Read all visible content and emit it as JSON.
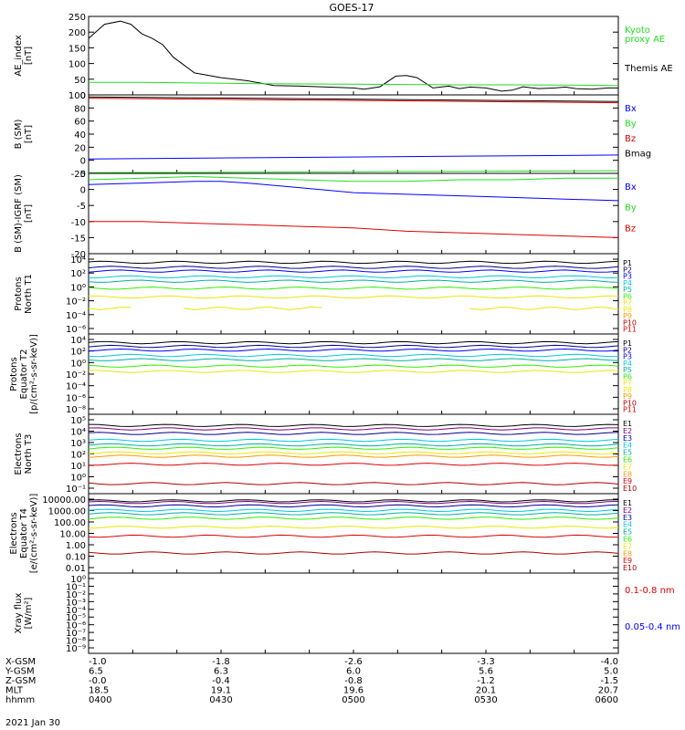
{
  "title": "GOES-17",
  "date": "2021 Jan 30",
  "colors": {
    "black": "#000000",
    "green": "#22dd22",
    "blue": "#0000ff",
    "red": "#dd0000",
    "navy": "#00008b",
    "purple": "#7a0080",
    "cyan": "#00c8e0",
    "teal": "#00b0a0",
    "lime": "#33ee00",
    "yellow": "#e8e800",
    "orange": "#ff9900",
    "darkred": "#aa0000",
    "orangeRed": "#ff4400"
  },
  "chart_data": [
    {
      "id": "ae",
      "type": "line",
      "ylabel": [
        "AE_index",
        "[nT]"
      ],
      "scale": "linear",
      "ylim": [
        0,
        250
      ],
      "ticks": [
        "0",
        "50",
        "100",
        "150",
        "200",
        "250"
      ],
      "legend": [
        {
          "label": "Kyoto",
          "color": "green"
        },
        {
          "label": "proxy AE",
          "color": "green"
        },
        {
          "label": "Themis AE",
          "color": "black"
        }
      ],
      "series": [
        {
          "color": "black",
          "x": [
            0,
            3,
            6,
            8,
            10,
            12,
            14,
            16,
            20,
            25,
            30,
            35,
            40,
            45,
            50,
            52,
            55,
            58,
            60,
            62,
            65,
            68,
            70,
            72,
            75,
            78,
            80,
            82,
            85,
            88,
            90,
            92,
            95,
            98,
            100
          ],
          "y": [
            180,
            225,
            235,
            225,
            195,
            180,
            160,
            120,
            70,
            55,
            45,
            30,
            28,
            25,
            22,
            18,
            26,
            60,
            62,
            55,
            22,
            28,
            20,
            25,
            22,
            12,
            15,
            26,
            20,
            22,
            25,
            20,
            18,
            22,
            22
          ]
        },
        {
          "color": "green",
          "x": [
            0,
            10,
            20,
            30,
            40,
            50,
            60,
            70,
            80,
            90,
            100
          ],
          "y": [
            40,
            40,
            38,
            36,
            35,
            34,
            33,
            32,
            32,
            31,
            30
          ]
        }
      ]
    },
    {
      "id": "b",
      "type": "line",
      "ylabel": [
        "B (SM)",
        "[nT]"
      ],
      "scale": "linear",
      "ylim": [
        -20,
        100
      ],
      "ticks": [
        "-20",
        "0",
        "20",
        "40",
        "60",
        "80",
        "100"
      ],
      "legend": [
        {
          "label": "Bx",
          "color": "blue"
        },
        {
          "label": "By",
          "color": "green"
        },
        {
          "label": "Bz",
          "color": "red"
        },
        {
          "label": "Bmag",
          "color": "black"
        }
      ],
      "series": [
        {
          "color": "black",
          "x": [
            0,
            100
          ],
          "y": [
            97,
            90
          ]
        },
        {
          "color": "red",
          "x": [
            0,
            100
          ],
          "y": [
            95,
            88
          ]
        },
        {
          "color": "blue",
          "x": [
            0,
            100
          ],
          "y": [
            2,
            8
          ]
        },
        {
          "color": "green",
          "x": [
            0,
            100
          ],
          "y": [
            -19,
            -16
          ]
        }
      ]
    },
    {
      "id": "db",
      "type": "line",
      "ylabel": [
        "B (SM)-IGRF (SM)",
        "[nT]"
      ],
      "scale": "linear",
      "ylim": [
        -20,
        5
      ],
      "ticks": [
        "-20",
        "-15",
        "-10",
        "-5",
        "0",
        "5"
      ],
      "legend": [
        {
          "label": "Bx",
          "color": "blue"
        },
        {
          "label": "By",
          "color": "green"
        },
        {
          "label": "Bz",
          "color": "red"
        }
      ],
      "series": [
        {
          "color": "green",
          "x": [
            0,
            10,
            20,
            30,
            40,
            50,
            60,
            70,
            80,
            90,
            100
          ],
          "y": [
            3,
            3.5,
            4,
            3.5,
            3,
            2.5,
            2.5,
            3,
            3,
            3.5,
            3.5
          ]
        },
        {
          "color": "blue",
          "x": [
            0,
            10,
            20,
            25,
            30,
            40,
            50,
            60,
            70,
            80,
            90,
            100
          ],
          "y": [
            1.5,
            2,
            2.5,
            2.5,
            2,
            0.5,
            -1,
            -1.5,
            -2,
            -2.5,
            -3,
            -3.5
          ]
        },
        {
          "color": "red",
          "x": [
            0,
            10,
            20,
            30,
            40,
            50,
            60,
            70,
            80,
            90,
            100
          ],
          "y": [
            -10,
            -10,
            -10.5,
            -11,
            -11.5,
            -12,
            -13,
            -13.5,
            -14,
            -14.5,
            -15
          ]
        }
      ]
    },
    {
      "id": "p1",
      "type": "line",
      "ylabel": [
        "Protons",
        "North T1"
      ],
      "scale": "log",
      "ylim": [
        -7,
        4
      ],
      "ticks": [
        "10⁴",
        "10²",
        "10⁰",
        "10⁻²",
        "10⁻⁴",
        "10⁻⁶"
      ],
      "legend": [
        "P1",
        "P2",
        "P3",
        "P4",
        "P5",
        "P6",
        "P7",
        "P8",
        "P9",
        "P10",
        "P11"
      ],
      "legend_colors": [
        "black",
        "navy",
        "blue",
        "cyan",
        "teal",
        "lime",
        "yellow",
        "yellow",
        "orange",
        "darkred",
        "red"
      ],
      "series": [
        {
          "color": "black",
          "level": 3.5
        },
        {
          "color": "navy",
          "level": 2.7
        },
        {
          "color": "blue",
          "level": 2.1
        },
        {
          "color": "cyan",
          "level": 1.2
        },
        {
          "color": "teal",
          "level": 0.5
        },
        {
          "color": "lime",
          "level": -0.6
        },
        {
          "color": "yellow",
          "level": -2.0
        },
        {
          "color": "yellow",
          "level": -3.8,
          "broken": true
        }
      ]
    },
    {
      "id": "p2",
      "type": "line",
      "ylabel": [
        "Protons",
        "Equator T2",
        "[p/(cm²-s-sr-keV)]"
      ],
      "scale": "log",
      "ylim": [
        -9,
        4
      ],
      "ticks": [
        "10⁴",
        "10²",
        "10⁰",
        "10⁻²",
        "10⁻⁴",
        "10⁻⁶",
        "10⁻⁸"
      ],
      "legend": [
        "P1",
        "P2",
        "P3",
        "P4",
        "P5",
        "P6",
        "P7",
        "P8",
        "P9",
        "P10",
        "P11"
      ],
      "legend_colors": [
        "black",
        "navy",
        "blue",
        "cyan",
        "teal",
        "lime",
        "yellow",
        "yellow",
        "orange",
        "darkred",
        "red"
      ],
      "series": [
        {
          "color": "black",
          "level": 3.4
        },
        {
          "color": "navy",
          "level": 2.7
        },
        {
          "color": "blue",
          "level": 2.0
        },
        {
          "color": "cyan",
          "level": 1.0
        },
        {
          "color": "teal",
          "level": 0.2
        },
        {
          "color": "lime",
          "level": -1.0
        },
        {
          "color": "yellow",
          "level": -2.0
        }
      ]
    },
    {
      "id": "e1",
      "type": "line",
      "ylabel": [
        "Electrons",
        "North T3"
      ],
      "scale": "log",
      "ylim": [
        -1,
        5
      ],
      "ticks": [
        "10⁵",
        "10⁴",
        "10³",
        "10²",
        "10¹",
        "10⁰",
        "10⁻¹"
      ],
      "legend": [
        "E1",
        "E2",
        "E3",
        "E4",
        "E5",
        "E6",
        "E7",
        "E8",
        "E9",
        "E10"
      ],
      "legend_colors": [
        "black",
        "purple",
        "navy",
        "cyan",
        "teal",
        "lime",
        "yellow",
        "orange",
        "red",
        "darkred"
      ],
      "series": [
        {
          "color": "black",
          "level": 4.5
        },
        {
          "color": "purple",
          "level": 4.2
        },
        {
          "color": "navy",
          "level": 3.8
        },
        {
          "color": "cyan",
          "level": 3.2
        },
        {
          "color": "teal",
          "level": 2.8
        },
        {
          "color": "lime",
          "level": 2.5
        },
        {
          "color": "yellow",
          "level": 2.1
        },
        {
          "color": "orange",
          "level": 1.8
        },
        {
          "color": "red",
          "level": 1.1
        },
        {
          "color": "darkred",
          "level": -0.6
        }
      ]
    },
    {
      "id": "e2",
      "type": "line",
      "ylabel": [
        "Electrons",
        "Equator T4",
        "[e/(cm²-s-sr-keV)]"
      ],
      "scale": "log",
      "ylim": [
        -2,
        4.1
      ],
      "ticks": [
        "10000.00",
        "1000.00",
        "100.00",
        "10.00",
        "1.00",
        "0.10",
        "0.01"
      ],
      "legend": [
        "E1",
        "E2",
        "E3",
        "E4",
        "E5",
        "E6",
        "E7",
        "E8",
        "E9",
        "E10"
      ],
      "legend_colors": [
        "black",
        "purple",
        "navy",
        "cyan",
        "teal",
        "lime",
        "yellow",
        "orange",
        "red",
        "darkred"
      ],
      "series": [
        {
          "color": "black",
          "level": 3.95
        },
        {
          "color": "purple",
          "level": 3.8
        },
        {
          "color": "navy",
          "level": 3.5
        },
        {
          "color": "cyan",
          "level": 3.1
        },
        {
          "color": "teal",
          "level": 2.8
        },
        {
          "color": "lime",
          "level": 2.4
        },
        {
          "color": "yellow",
          "level": 1.6
        },
        {
          "color": "red",
          "level": 0.8
        },
        {
          "color": "darkred",
          "level": -0.7
        }
      ]
    },
    {
      "id": "xray",
      "type": "line",
      "ylabel": [
        "Xray flux",
        "[W/m²]"
      ],
      "scale": "log",
      "ylim": [
        -9,
        0
      ],
      "ticks": [
        "10⁰",
        "10⁻¹",
        "10⁻²",
        "10⁻³",
        "10⁻⁴",
        "10⁻⁵",
        "10⁻⁶",
        "10⁻⁷",
        "10⁻⁸",
        "10⁻⁹"
      ],
      "legend": [
        {
          "label": "0.1-0.8 nm",
          "color": "red"
        },
        {
          "label": "0.05-0.4 nm",
          "color": "blue"
        }
      ],
      "series": []
    }
  ],
  "xaxis": {
    "row_labels": [
      "X-GSM",
      "Y-GSM",
      "Z-GSM",
      "MLT",
      "hhmm"
    ],
    "columns": [
      [
        "-1.0",
        "6.5",
        "-0.0",
        "18.5",
        "0400"
      ],
      [
        "-1.8",
        "6.3",
        "-0.4",
        "19.1",
        "0430"
      ],
      [
        "-2.6",
        "6.0",
        "-0.8",
        "19.6",
        "0500"
      ],
      [
        "-3.3",
        "5.6",
        "-1.2",
        "20.1",
        "0530"
      ],
      [
        "-4.0",
        "5.0",
        "-1.5",
        "20.7",
        "0600"
      ]
    ]
  }
}
